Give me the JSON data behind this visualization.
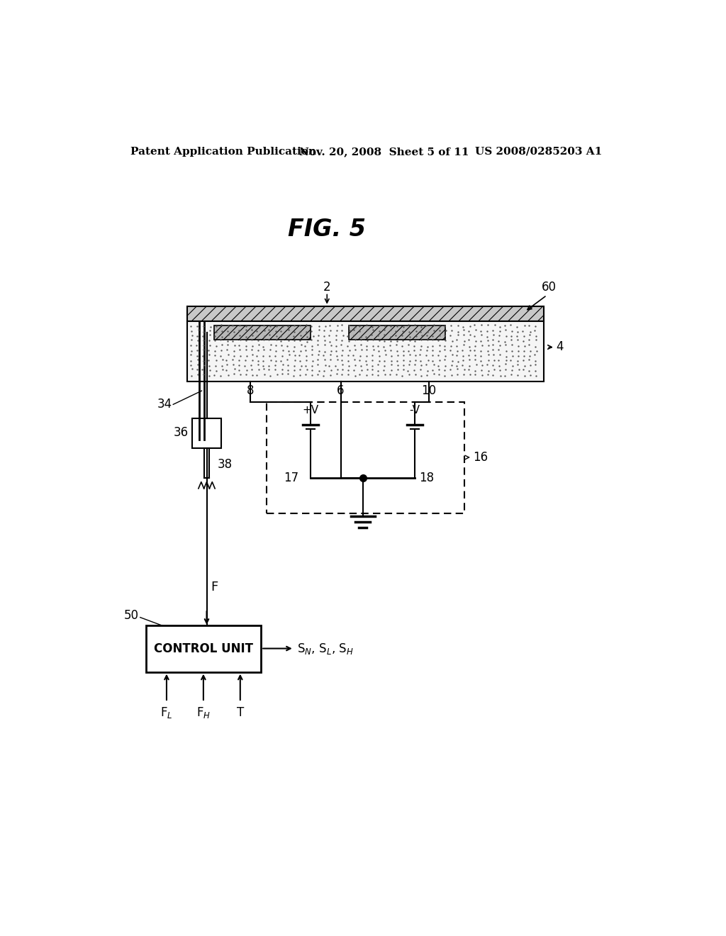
{
  "bg_color": "#ffffff",
  "header_left": "Patent Application Publication",
  "header_mid": "Nov. 20, 2008  Sheet 5 of 11",
  "header_right": "US 2008/0285203 A1",
  "fig_label": "FIG. 5",
  "header_fontsize": 11,
  "fig_fontsize": 24
}
